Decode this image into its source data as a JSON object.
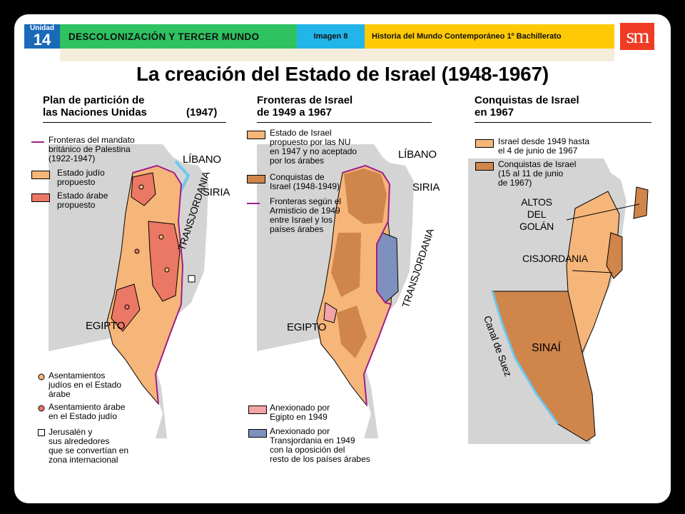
{
  "header": {
    "unit_label": "Unidad",
    "unit_number": "14",
    "unit_title": "DESCOLONIZACIÓN Y TERCER MUNDO",
    "image_label": "Imagen 8",
    "course": "Historia del Mundo Contemporáneo 1º Bachillerato",
    "logo": "sm"
  },
  "title": "La creación del Estado de Israel  (1948-1967)",
  "colors": {
    "sea": "#d4d4d4",
    "water_edge": "#6cc8ee",
    "jewish_state": "#f6b679",
    "arab_state": "#eb7765",
    "conquests": "#d0854b",
    "egypt": "#f2a4a8",
    "transjordan": "#7e90bd",
    "mandate_border": "#a01e8a"
  },
  "panel1": {
    "heading_line1": "Plan de partición de",
    "heading_line2": "las Naciones Unidas",
    "year": "(1947)",
    "legend": {
      "mandate_l1": "Fronteras del mandato",
      "mandate_l2": "británico de Palestina",
      "mandate_l3": "(1922-1947)",
      "jewish_l1": "Estado judío",
      "jewish_l2": "propuesto",
      "arab_l1": "Estado árabe",
      "arab_l2": "propuesto"
    },
    "places": {
      "lebanon": "LÍBANO",
      "syria": "SIRIA",
      "transjordan": "TRANSJORDANIA",
      "egypt": "EGIPTO"
    },
    "bottom_legend": {
      "settle_jew_l1": "Asentamientos",
      "settle_jew_l2": "judíos en el Estado",
      "settle_jew_l3": "árabe",
      "settle_arab_l1": "Asentamiento árabe",
      "settle_arab_l2": "en el Estado judío",
      "jerusalem_l1": "Jerusalén y",
      "jerusalem_l2": "sus alrededores",
      "jerusalem_l3": "que se convertían en",
      "jerusalem_l4": "zona internacional"
    }
  },
  "panel2": {
    "heading_line1": "Fronteras de Israel",
    "heading_line2": "de 1949 a 1967",
    "legend": {
      "un_l1": "Estado de Israel",
      "un_l2": "propuesto por las NU",
      "un_l3": "en 1947 y no aceptado",
      "un_l4": "por los árabes",
      "conq_l1": "Conquistas de",
      "conq_l2": "Israel (1948-1949)",
      "armistice_l1": "Fronteras según el",
      "armistice_l2": "Armisticio de 1949",
      "armistice_l3": "entre Israel y los",
      "armistice_l4": "países árabes"
    },
    "places": {
      "lebanon": "LÍBANO",
      "syria": "SIRIA",
      "transjordan": "TRANSJORDANIA",
      "egypt": "EGIPTO"
    },
    "bottom_legend": {
      "egypt_l1": "Anexionado por",
      "egypt_l2": "Egipto en 1949",
      "tj_l1": "Anexionado por",
      "tj_l2": "Transjordania en 1949",
      "tj_l3": "con la oposición del",
      "tj_l4": "resto de los países árabes"
    }
  },
  "panel3": {
    "heading_line1": "Conquistas de Israel",
    "heading_line2": "en 1967",
    "legend": {
      "israel_l1": "Israel desde 1949 hasta",
      "israel_l2": "el 4 de junio de 1967",
      "conq_l1": "Conquistas de Israel",
      "conq_l2": "(15 al 11 de junio",
      "conq_l3": "de 1967)"
    },
    "places": {
      "golan_l1": "ALTOS",
      "golan_l2": "DEL",
      "golan_l3": "GOLÁN",
      "westbank": "CISJORDANIA",
      "sinai": "SINAÍ",
      "suez": "Canal de Suez"
    }
  }
}
